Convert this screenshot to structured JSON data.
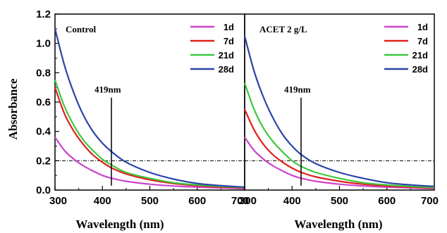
{
  "chart_data": [
    {
      "type": "line",
      "panel_label": "Control",
      "xlabel": "Wavelength (nm)",
      "ylabel": "Absorbance",
      "xlim": [
        300,
        700
      ],
      "ylim": [
        0.0,
        1.2
      ],
      "x_ticks": [
        "300",
        "400",
        "500",
        "600",
        "700"
      ],
      "y_ticks": [
        "0.0",
        "0.2",
        "0.4",
        "0.6",
        "0.8",
        "1.0",
        "1.2"
      ],
      "legend_position": "top-right",
      "reference_hline": 0.2,
      "marker_line_x": 419,
      "marker_label": "419nm",
      "series": [
        {
          "name": "1d",
          "color": "#cc44cc",
          "x": [
            300,
            320,
            340,
            360,
            380,
            400,
            420,
            450,
            500,
            550,
            600,
            650,
            700
          ],
          "y": [
            0.36,
            0.27,
            0.21,
            0.165,
            0.13,
            0.1,
            0.08,
            0.06,
            0.04,
            0.028,
            0.02,
            0.015,
            0.01
          ]
        },
        {
          "name": "7d",
          "color": "#e0201c",
          "x": [
            300,
            320,
            340,
            360,
            380,
            400,
            420,
            450,
            500,
            550,
            600,
            650,
            700
          ],
          "y": [
            0.7,
            0.52,
            0.4,
            0.31,
            0.24,
            0.19,
            0.15,
            0.11,
            0.07,
            0.045,
            0.03,
            0.02,
            0.015
          ]
        },
        {
          "name": "21d",
          "color": "#3ec83e",
          "x": [
            300,
            320,
            340,
            360,
            380,
            400,
            420,
            450,
            500,
            550,
            600,
            650,
            700
          ],
          "y": [
            0.75,
            0.57,
            0.44,
            0.34,
            0.27,
            0.21,
            0.17,
            0.12,
            0.08,
            0.05,
            0.035,
            0.025,
            0.018
          ]
        },
        {
          "name": "28d",
          "color": "#2a44a8",
          "x": [
            300,
            320,
            340,
            360,
            380,
            400,
            420,
            450,
            500,
            550,
            600,
            650,
            700
          ],
          "y": [
            1.1,
            0.85,
            0.66,
            0.51,
            0.4,
            0.32,
            0.26,
            0.19,
            0.12,
            0.075,
            0.045,
            0.03,
            0.02
          ]
        }
      ]
    },
    {
      "type": "line",
      "panel_label": "ACET 2 g/L",
      "xlabel": "Wavelength (nm)",
      "ylabel": "",
      "xlim": [
        300,
        700
      ],
      "ylim": [
        0.0,
        1.2
      ],
      "x_ticks": [
        "300",
        "400",
        "500",
        "600",
        "700"
      ],
      "y_ticks": [],
      "legend_position": "top-right",
      "reference_hline": 0.2,
      "marker_line_x": 419,
      "marker_label": "419nm",
      "series": [
        {
          "name": "1d",
          "color": "#cc44cc",
          "x": [
            300,
            320,
            340,
            360,
            380,
            400,
            420,
            450,
            500,
            550,
            600,
            650,
            700
          ],
          "y": [
            0.36,
            0.27,
            0.21,
            0.165,
            0.13,
            0.1,
            0.08,
            0.06,
            0.04,
            0.028,
            0.02,
            0.015,
            0.01
          ]
        },
        {
          "name": "7d",
          "color": "#e0201c",
          "x": [
            300,
            320,
            340,
            360,
            380,
            400,
            420,
            450,
            500,
            550,
            600,
            650,
            700
          ],
          "y": [
            0.55,
            0.41,
            0.31,
            0.24,
            0.19,
            0.15,
            0.12,
            0.09,
            0.06,
            0.04,
            0.028,
            0.02,
            0.014
          ]
        },
        {
          "name": "21d",
          "color": "#3ec83e",
          "x": [
            300,
            320,
            340,
            360,
            380,
            400,
            420,
            450,
            500,
            550,
            600,
            650,
            700
          ],
          "y": [
            0.73,
            0.55,
            0.42,
            0.33,
            0.26,
            0.2,
            0.16,
            0.12,
            0.08,
            0.05,
            0.035,
            0.025,
            0.018
          ]
        },
        {
          "name": "28d",
          "color": "#2a44a8",
          "x": [
            300,
            320,
            340,
            360,
            380,
            400,
            420,
            450,
            500,
            550,
            600,
            650,
            700
          ],
          "y": [
            1.05,
            0.81,
            0.63,
            0.49,
            0.38,
            0.3,
            0.24,
            0.18,
            0.12,
            0.08,
            0.05,
            0.035,
            0.025
          ]
        }
      ]
    }
  ]
}
